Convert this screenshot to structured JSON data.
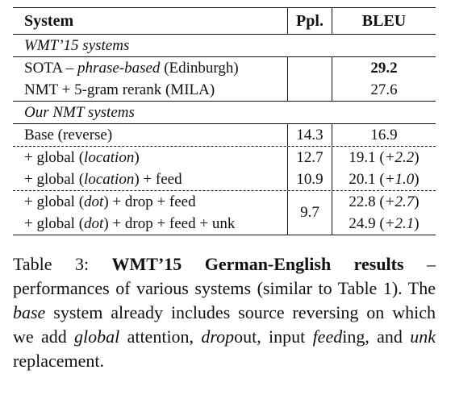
{
  "table": {
    "headers": {
      "system": "System",
      "ppl": "Ppl.",
      "bleu": "BLEU"
    },
    "sections": [
      {
        "title": "WMT’15 systems",
        "rows": [
          {
            "pre": "SOTA – ",
            "italic": "phrase-based",
            "post": " (Edinburgh)",
            "ppl": "",
            "bleu": "29.2",
            "bleu_gain": "",
            "bold_bleu": true
          },
          {
            "pre": "NMT + 5-gram rerank (MILA)",
            "italic": "",
            "post": "",
            "ppl": "",
            "bleu": "27.6",
            "bleu_gain": ""
          }
        ]
      },
      {
        "title": "Our NMT systems",
        "rows": [
          {
            "pre": "Base (reverse)",
            "italic": "",
            "post": "",
            "ppl": "14.3",
            "bleu": "16.9",
            "bleu_gain": ""
          },
          {
            "pre": "+ global (",
            "italic": "location",
            "post": ")",
            "ppl": "12.7",
            "bleu": "19.1 (",
            "bleu_gain": "+2.2",
            "bleu_close": ")"
          },
          {
            "pre": "+ global (",
            "italic": "location",
            "post": ") + feed",
            "ppl": "10.9",
            "bleu": "20.1 (",
            "bleu_gain": "+1.0",
            "bleu_close": ")"
          },
          {
            "pre": "+ global (",
            "italic": "dot",
            "post": ") + drop + feed",
            "ppl": "9.7",
            "bleu": "22.8 (",
            "bleu_gain": "+2.7",
            "bleu_close": ")"
          },
          {
            "pre": "+ global (",
            "italic": "dot",
            "post": ") + drop + feed + unk",
            "ppl": "",
            "bleu": "24.9 (",
            "bleu_gain": "+2.1",
            "bleu_close": ")"
          }
        ]
      }
    ]
  },
  "caption": {
    "label": "Table 3:",
    "bold_title": "WMT’15 German-English results",
    "t1": " – performances of various systems (similar to Table 1). The ",
    "i1": "base",
    "t2": " system already includes source reversing on which we add ",
    "i2": "global",
    "t3": " attention, ",
    "i3": "drop",
    "t4": "out, input ",
    "i4": "feed",
    "t5": "ing, and ",
    "i5": "unk",
    "t6": " replacement."
  }
}
